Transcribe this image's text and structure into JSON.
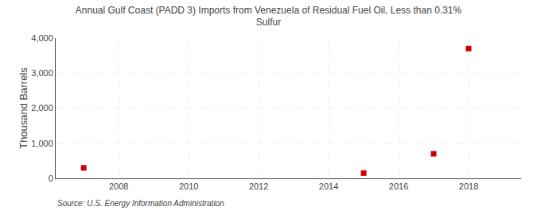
{
  "chart_data": {
    "type": "scatter",
    "title": "Annual Gulf Coast (PADD 3) Imports from Venezuela of Residual Fuel Oil, Less than 0.31%\nSulfur",
    "ylabel": "Thousand Barrels",
    "annotations": [
      "Source: U.S. Energy Information Administration"
    ],
    "x": [
      2007,
      2015,
      2017,
      2018
    ],
    "values": [
      300,
      150,
      700,
      3700
    ],
    "color": "#cc0000",
    "marker": "square",
    "xlim": [
      2006.2,
      2019.5
    ],
    "ylim": [
      0,
      4000
    ],
    "xticks": [
      2008,
      2010,
      2012,
      2014,
      2016,
      2018
    ],
    "yticks": [
      0,
      {
        "value": 1000,
        "label": "1,000"
      },
      {
        "value": 2000,
        "label": "2,000"
      },
      {
        "value": 3000,
        "label": "3,000"
      },
      {
        "value": 4000,
        "label": "4,000"
      }
    ],
    "grid": true
  }
}
